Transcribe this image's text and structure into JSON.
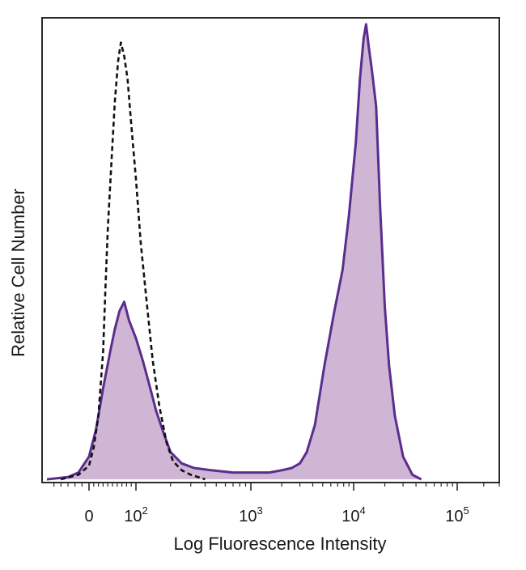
{
  "chart_data": {
    "type": "area",
    "title": "",
    "xlabel": "Log Fluorescence Intensity",
    "ylabel": "Relative Cell Number",
    "x_scale": "biexponential",
    "xlim": [
      -60,
      300000
    ],
    "ylim": [
      0,
      100
    ],
    "grid": false,
    "legend": "none",
    "x_ticks": [
      {
        "value": 0,
        "base": "0",
        "exp": ""
      },
      {
        "value": 100,
        "base": "10",
        "exp": "2"
      },
      {
        "value": 1000,
        "base": "10",
        "exp": "3"
      },
      {
        "value": 10000,
        "base": "10",
        "exp": "4"
      },
      {
        "value": 100000,
        "base": "10",
        "exp": "5"
      }
    ],
    "series": [
      {
        "style": "dashed",
        "color": "#111111",
        "filled": false,
        "points": [
          [
            -40,
            0
          ],
          [
            -15,
            1
          ],
          [
            0,
            3
          ],
          [
            10,
            7
          ],
          [
            20,
            14
          ],
          [
            30,
            28
          ],
          [
            35,
            42
          ],
          [
            40,
            55
          ],
          [
            48,
            70
          ],
          [
            55,
            83
          ],
          [
            62,
            92
          ],
          [
            68,
            96
          ],
          [
            75,
            93
          ],
          [
            82,
            88
          ],
          [
            90,
            78
          ],
          [
            100,
            66
          ],
          [
            110,
            52
          ],
          [
            125,
            38
          ],
          [
            140,
            26
          ],
          [
            160,
            16
          ],
          [
            185,
            8
          ],
          [
            210,
            4
          ],
          [
            250,
            2
          ],
          [
            300,
            1
          ],
          [
            400,
            0
          ]
        ]
      },
      {
        "style": "solid",
        "color": "#5b2d8e",
        "fill": "#c7a9cc",
        "filled": true,
        "points": [
          [
            -60,
            0
          ],
          [
            -30,
            0.5
          ],
          [
            -15,
            1.5
          ],
          [
            0,
            5
          ],
          [
            15,
            11
          ],
          [
            30,
            20
          ],
          [
            45,
            28
          ],
          [
            55,
            33
          ],
          [
            65,
            37
          ],
          [
            75,
            39
          ],
          [
            85,
            35
          ],
          [
            100,
            31
          ],
          [
            115,
            26
          ],
          [
            130,
            21
          ],
          [
            150,
            15
          ],
          [
            175,
            10
          ],
          [
            200,
            6
          ],
          [
            250,
            3.5
          ],
          [
            320,
            2.5
          ],
          [
            450,
            2
          ],
          [
            700,
            1.5
          ],
          [
            1000,
            1.5
          ],
          [
            1500,
            1.5
          ],
          [
            2000,
            2
          ],
          [
            2500,
            2.5
          ],
          [
            3000,
            3.5
          ],
          [
            3500,
            6
          ],
          [
            4200,
            12
          ],
          [
            5200,
            25
          ],
          [
            6500,
            37
          ],
          [
            7800,
            46
          ],
          [
            9000,
            58
          ],
          [
            10500,
            74
          ],
          [
            11500,
            88
          ],
          [
            12500,
            97
          ],
          [
            13200,
            100
          ],
          [
            14000,
            95
          ],
          [
            15000,
            90
          ],
          [
            16500,
            82
          ],
          [
            18000,
            60
          ],
          [
            20000,
            38
          ],
          [
            22000,
            25
          ],
          [
            25000,
            14
          ],
          [
            30000,
            5
          ],
          [
            37000,
            1
          ],
          [
            45000,
            0
          ]
        ]
      }
    ]
  }
}
